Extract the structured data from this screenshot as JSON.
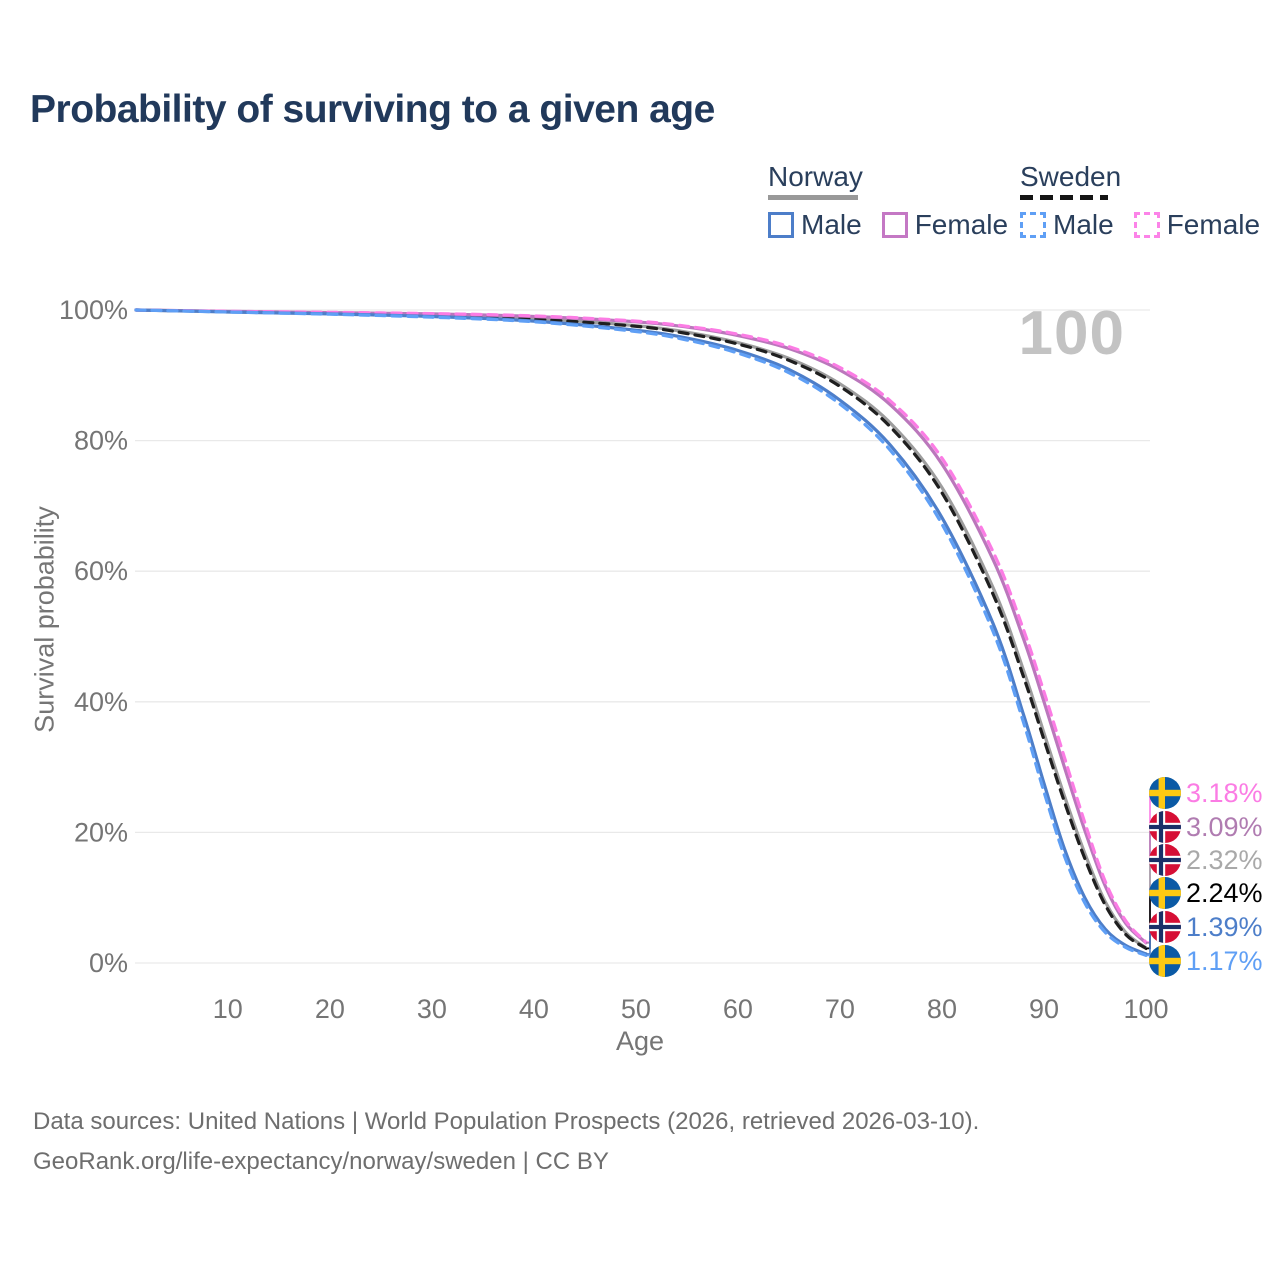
{
  "title": "Probability of surviving to a given age",
  "watermark": "100",
  "legend": {
    "norway": {
      "label": "Norway",
      "male": "Male",
      "female": "Female",
      "line_style": "solid",
      "header_color": "#999999"
    },
    "sweden": {
      "label": "Sweden",
      "male": "Male",
      "female": "Female",
      "line_style": "dashed",
      "header_color": "#141414"
    }
  },
  "footer": {
    "line1": "Data sources: United Nations | World Population Prospects (2026, retrieved 2026-03-10).",
    "line2": "GeoRank.org/life-expectancy/norway/sweden | CC BY"
  },
  "chart_data": {
    "type": "line",
    "xlabel": "Age",
    "ylabel": "Survival probability",
    "xlim": [
      1,
      100
    ],
    "ylim": [
      0,
      100
    ],
    "grid": "horizontal",
    "xticks": [
      10,
      20,
      30,
      40,
      50,
      60,
      70,
      80,
      90,
      100
    ],
    "yticks": [
      {
        "value": 0,
        "label": "0%"
      },
      {
        "value": 20,
        "label": "20%"
      },
      {
        "value": 40,
        "label": "40%"
      },
      {
        "value": 60,
        "label": "60%"
      },
      {
        "value": 80,
        "label": "80%"
      },
      {
        "value": 100,
        "label": "100%"
      }
    ],
    "series": [
      {
        "key": "norway_total",
        "name": "Norway (both sexes)",
        "country": "norway",
        "sex": "total",
        "color": "#9d9d9d",
        "dashed": false,
        "points": [
          [
            1,
            100
          ],
          [
            10,
            99.75
          ],
          [
            20,
            99.5
          ],
          [
            30,
            99.2
          ],
          [
            40,
            98.7
          ],
          [
            50,
            97.6
          ],
          [
            55,
            96.6
          ],
          [
            60,
            95.0
          ],
          [
            65,
            92.6
          ],
          [
            70,
            88.7
          ],
          [
            75,
            82.6
          ],
          [
            80,
            72.8
          ],
          [
            85,
            57.5
          ],
          [
            88,
            44.8
          ],
          [
            90,
            35.2
          ],
          [
            92,
            25.6
          ],
          [
            94,
            16.8
          ],
          [
            96,
            9.4
          ],
          [
            98,
            4.7
          ],
          [
            100,
            2.32
          ]
        ]
      },
      {
        "key": "sweden_total",
        "name": "Sweden (both sexes)",
        "country": "sweden",
        "sex": "total",
        "color": "#1f1f1f",
        "dashed": true,
        "points": [
          [
            1,
            100
          ],
          [
            10,
            99.75
          ],
          [
            20,
            99.45
          ],
          [
            30,
            99.15
          ],
          [
            40,
            98.6
          ],
          [
            50,
            97.5
          ],
          [
            55,
            96.4
          ],
          [
            60,
            94.8
          ],
          [
            65,
            92.3
          ],
          [
            70,
            88.3
          ],
          [
            75,
            82.0
          ],
          [
            80,
            72.0
          ],
          [
            85,
            56.5
          ],
          [
            88,
            43.8
          ],
          [
            90,
            34.2
          ],
          [
            92,
            24.7
          ],
          [
            94,
            16.0
          ],
          [
            96,
            8.9
          ],
          [
            98,
            4.4
          ],
          [
            100,
            2.24
          ]
        ]
      },
      {
        "key": "norway_female",
        "name": "Norway Female",
        "country": "norway",
        "sex": "female",
        "color": "#bb77bc",
        "dashed": false,
        "points": [
          [
            1,
            100
          ],
          [
            10,
            99.8
          ],
          [
            20,
            99.6
          ],
          [
            30,
            99.4
          ],
          [
            40,
            99.0
          ],
          [
            50,
            98.2
          ],
          [
            55,
            97.4
          ],
          [
            60,
            96.1
          ],
          [
            65,
            94.1
          ],
          [
            70,
            90.8
          ],
          [
            75,
            85.4
          ],
          [
            80,
            76.4
          ],
          [
            85,
            61.8
          ],
          [
            88,
            49.6
          ],
          [
            90,
            40.0
          ],
          [
            92,
            30.0
          ],
          [
            94,
            20.3
          ],
          [
            96,
            11.8
          ],
          [
            98,
            6.1
          ],
          [
            100,
            3.09
          ]
        ]
      },
      {
        "key": "sweden_female",
        "name": "Sweden Female",
        "country": "sweden",
        "sex": "female",
        "color": "#fb7ce4",
        "dashed": true,
        "points": [
          [
            1,
            100
          ],
          [
            10,
            99.8
          ],
          [
            20,
            99.65
          ],
          [
            30,
            99.45
          ],
          [
            40,
            99.1
          ],
          [
            50,
            98.3
          ],
          [
            55,
            97.5
          ],
          [
            60,
            96.3
          ],
          [
            65,
            94.4
          ],
          [
            70,
            91.2
          ],
          [
            75,
            86.0
          ],
          [
            80,
            77.3
          ],
          [
            85,
            63.0
          ],
          [
            88,
            51.0
          ],
          [
            90,
            41.5
          ],
          [
            92,
            31.5
          ],
          [
            94,
            21.5
          ],
          [
            96,
            12.5
          ],
          [
            98,
            6.5
          ],
          [
            100,
            3.18
          ]
        ]
      },
      {
        "key": "norway_male",
        "name": "Norway Male",
        "country": "norway",
        "sex": "male",
        "color": "#4d7ec9",
        "dashed": false,
        "points": [
          [
            1,
            100
          ],
          [
            10,
            99.7
          ],
          [
            20,
            99.4
          ],
          [
            30,
            99.0
          ],
          [
            40,
            98.3
          ],
          [
            50,
            96.9
          ],
          [
            55,
            95.7
          ],
          [
            60,
            93.8
          ],
          [
            65,
            90.9
          ],
          [
            70,
            86.2
          ],
          [
            75,
            79.2
          ],
          [
            80,
            68.2
          ],
          [
            85,
            52.0
          ],
          [
            88,
            38.0
          ],
          [
            90,
            27.5
          ],
          [
            92,
            17.5
          ],
          [
            94,
            10.0
          ],
          [
            96,
            5.2
          ],
          [
            98,
            2.7
          ],
          [
            100,
            1.39
          ]
        ]
      },
      {
        "key": "sweden_male",
        "name": "Sweden Male",
        "country": "sweden",
        "sex": "male",
        "color": "#5f9ff5",
        "dashed": true,
        "points": [
          [
            1,
            100
          ],
          [
            10,
            99.7
          ],
          [
            20,
            99.35
          ],
          [
            30,
            98.9
          ],
          [
            40,
            98.2
          ],
          [
            50,
            96.7
          ],
          [
            55,
            95.4
          ],
          [
            60,
            93.4
          ],
          [
            65,
            90.4
          ],
          [
            70,
            85.6
          ],
          [
            75,
            78.4
          ],
          [
            80,
            67.2
          ],
          [
            85,
            50.8
          ],
          [
            88,
            36.8
          ],
          [
            90,
            26.2
          ],
          [
            92,
            16.4
          ],
          [
            94,
            9.2
          ],
          [
            96,
            4.7
          ],
          [
            98,
            2.4
          ],
          [
            100,
            1.17
          ]
        ]
      }
    ],
    "end_labels": [
      {
        "series": "sweden_female",
        "flag": "sweden-flag-icon",
        "value": "3.18%",
        "color": "#fb7ce4"
      },
      {
        "series": "norway_female",
        "flag": "norway-flag-icon",
        "value": "3.09%",
        "color": "#b07cb1"
      },
      {
        "series": "norway_total",
        "flag": "norway-flag-icon",
        "value": "2.32%",
        "color": "#a9a9a9"
      },
      {
        "series": "sweden_total",
        "flag": "sweden-flag-icon",
        "value": "2.24%",
        "color": "#000000"
      },
      {
        "series": "norway_male",
        "flag": "norway-flag-icon",
        "value": "1.39%",
        "color": "#4d7ec9"
      },
      {
        "series": "sweden_male",
        "flag": "sweden-flag-icon",
        "value": "1.17%",
        "color": "#5f9ff5"
      }
    ]
  }
}
